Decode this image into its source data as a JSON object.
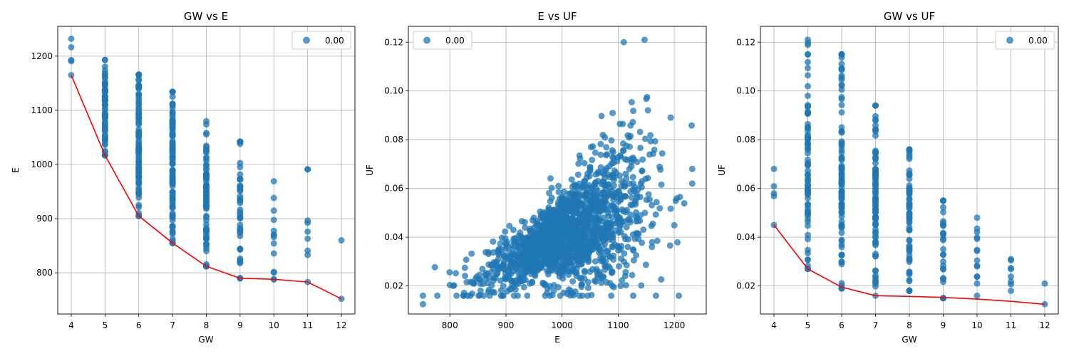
{
  "chart_data": [
    {
      "type": "scatter",
      "title": "GW vs E",
      "xlabel": "GW",
      "ylabel": "E",
      "xlim": [
        3.6,
        12.4
      ],
      "ylim": [
        724,
        1255
      ],
      "xticks": [
        4,
        5,
        6,
        7,
        8,
        9,
        10,
        11,
        12
      ],
      "yticks": [
        800,
        900,
        1000,
        1100,
        1200
      ],
      "grid": true,
      "legend": {
        "position": "top-right",
        "entries": [
          "0.00"
        ]
      },
      "colors": {
        "points": "#1f77b4",
        "line": "#ff0000"
      },
      "scatter_columns": [
        {
          "x": 4,
          "ymin": 1165,
          "ymax": 1232,
          "n": 5
        },
        {
          "x": 5,
          "ymin": 1017,
          "ymax": 1193,
          "n": 70
        },
        {
          "x": 6,
          "ymin": 905,
          "ymax": 1166,
          "n": 100
        },
        {
          "x": 7,
          "ymin": 855,
          "ymax": 1134,
          "n": 110
        },
        {
          "x": 8,
          "ymin": 812,
          "ymax": 1080,
          "n": 85
        },
        {
          "x": 9,
          "ymin": 790,
          "ymax": 1042,
          "n": 45
        },
        {
          "x": 10,
          "ymin": 788,
          "ymax": 969,
          "n": 14
        },
        {
          "x": 11,
          "ymin": 783,
          "ymax": 991,
          "n": 9
        },
        {
          "x": 12,
          "ymin": 752,
          "ymax": 860,
          "n": 2
        }
      ],
      "line": {
        "x": [
          4,
          5,
          6,
          7,
          8,
          9,
          10,
          11,
          12
        ],
        "y": [
          1165,
          1017,
          905,
          855,
          812,
          790,
          788,
          783,
          752
        ]
      }
    },
    {
      "type": "scatter",
      "title": "E vs UF",
      "xlabel": "E",
      "ylabel": "UF",
      "xlim": [
        726,
        1257
      ],
      "ylim": [
        0.0085,
        0.1265
      ],
      "xticks": [
        800,
        900,
        1000,
        1100,
        1200
      ],
      "yticks": [
        0.02,
        0.04,
        0.06,
        0.08,
        0.1,
        0.12
      ],
      "ytick_labels": [
        "0.02",
        "0.04",
        "0.06",
        "0.08",
        "0.10",
        "0.12"
      ],
      "grid": true,
      "legend": {
        "position": "top-left",
        "entries": [
          "0.00"
        ]
      },
      "colors": {
        "points": "#1f77b4"
      },
      "cloud": {
        "n": 1600,
        "x_range": [
          752,
          1232
        ],
        "y_range": [
          0.0125,
          0.121
        ],
        "correlation": "positive"
      }
    },
    {
      "type": "scatter",
      "title": "GW vs UF",
      "xlabel": "GW",
      "ylabel": "UF",
      "xlim": [
        3.6,
        12.4
      ],
      "ylim": [
        0.0085,
        0.1265
      ],
      "xticks": [
        4,
        5,
        6,
        7,
        8,
        9,
        10,
        11,
        12
      ],
      "yticks": [
        0.02,
        0.04,
        0.06,
        0.08,
        0.1,
        0.12
      ],
      "ytick_labels": [
        "0.02",
        "0.04",
        "0.06",
        "0.08",
        "0.10",
        "0.12"
      ],
      "grid": true,
      "legend": {
        "position": "top-right",
        "entries": [
          "0.00"
        ]
      },
      "colors": {
        "points": "#1f77b4",
        "line": "#ff0000"
      },
      "scatter_columns": [
        {
          "x": 4,
          "ymin": 0.045,
          "ymax": 0.068,
          "n": 5
        },
        {
          "x": 5,
          "ymin": 0.027,
          "ymax": 0.121,
          "n": 80
        },
        {
          "x": 6,
          "ymin": 0.019,
          "ymax": 0.115,
          "n": 100
        },
        {
          "x": 7,
          "ymin": 0.016,
          "ymax": 0.094,
          "n": 90
        },
        {
          "x": 8,
          "ymin": 0.018,
          "ymax": 0.076,
          "n": 70
        },
        {
          "x": 9,
          "ymin": 0.015,
          "ymax": 0.055,
          "n": 30
        },
        {
          "x": 10,
          "ymin": 0.016,
          "ymax": 0.048,
          "n": 14
        },
        {
          "x": 11,
          "ymin": 0.018,
          "ymax": 0.031,
          "n": 8
        },
        {
          "x": 12,
          "ymin": 0.0125,
          "ymax": 0.021,
          "n": 2
        }
      ],
      "line": {
        "x": [
          4,
          5,
          6,
          7,
          8,
          9,
          10,
          11,
          12
        ],
        "y": [
          0.045,
          0.027,
          0.0195,
          0.016,
          0.0157,
          0.0153,
          0.0146,
          0.0137,
          0.0125
        ]
      }
    }
  ]
}
